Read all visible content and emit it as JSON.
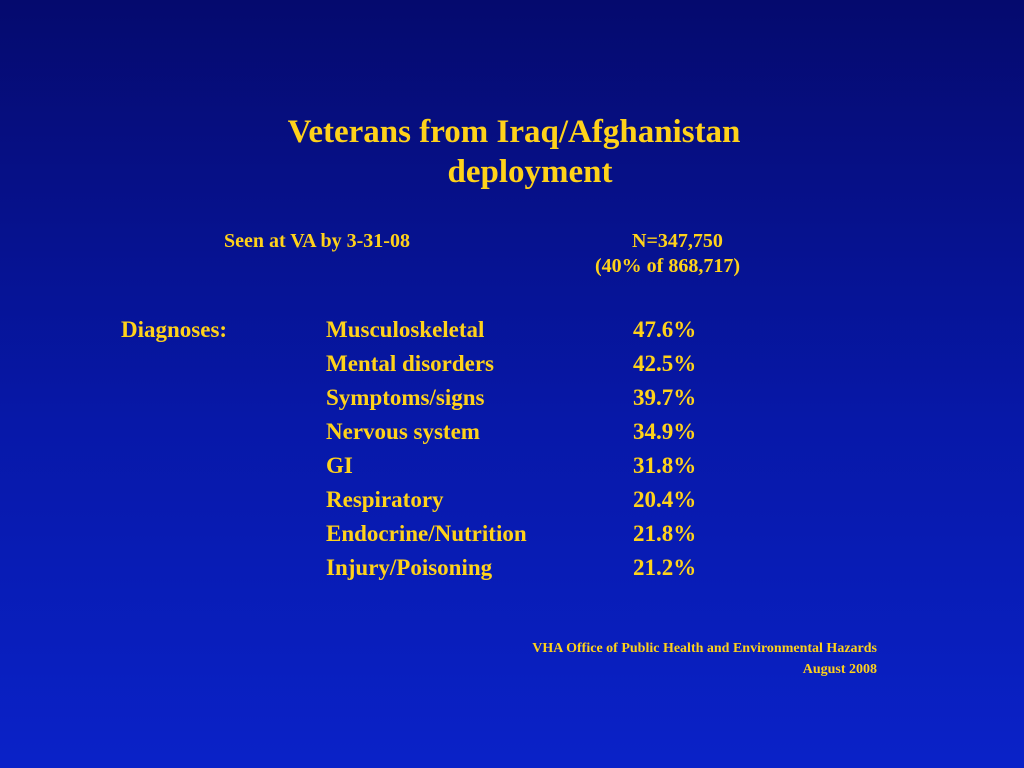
{
  "slide": {
    "title_line1": "Veterans from Iraq/Afghanistan",
    "title_line2": "deployment",
    "seen_label": "Seen at VA by 3-31-08",
    "seen_n": "N=347,750",
    "seen_pct": "(40% of 868,717)",
    "diagnoses_label": "Diagnoses:",
    "diagnoses": [
      {
        "name": "Musculoskeletal",
        "pct": "47.6%"
      },
      {
        "name": "Mental disorders",
        "pct": "42.5%"
      },
      {
        "name": "Symptoms/signs",
        "pct": "39.7%"
      },
      {
        "name": "Nervous system",
        "pct": "34.9%"
      },
      {
        "name": "GI",
        "pct": "31.8%"
      },
      {
        "name": "Respiratory",
        "pct": "20.4%"
      },
      {
        "name": "Endocrine/Nutrition",
        "pct": "21.8%"
      },
      {
        "name": "Injury/Poisoning",
        "pct": "21.2%"
      }
    ],
    "source_line1": "VHA Office of Public Health and Environmental Hazards",
    "source_line2": "August 2008"
  },
  "colors": {
    "background_top": "#050a6e",
    "background_bottom": "#0a22c8",
    "text": "#ffd21a"
  }
}
